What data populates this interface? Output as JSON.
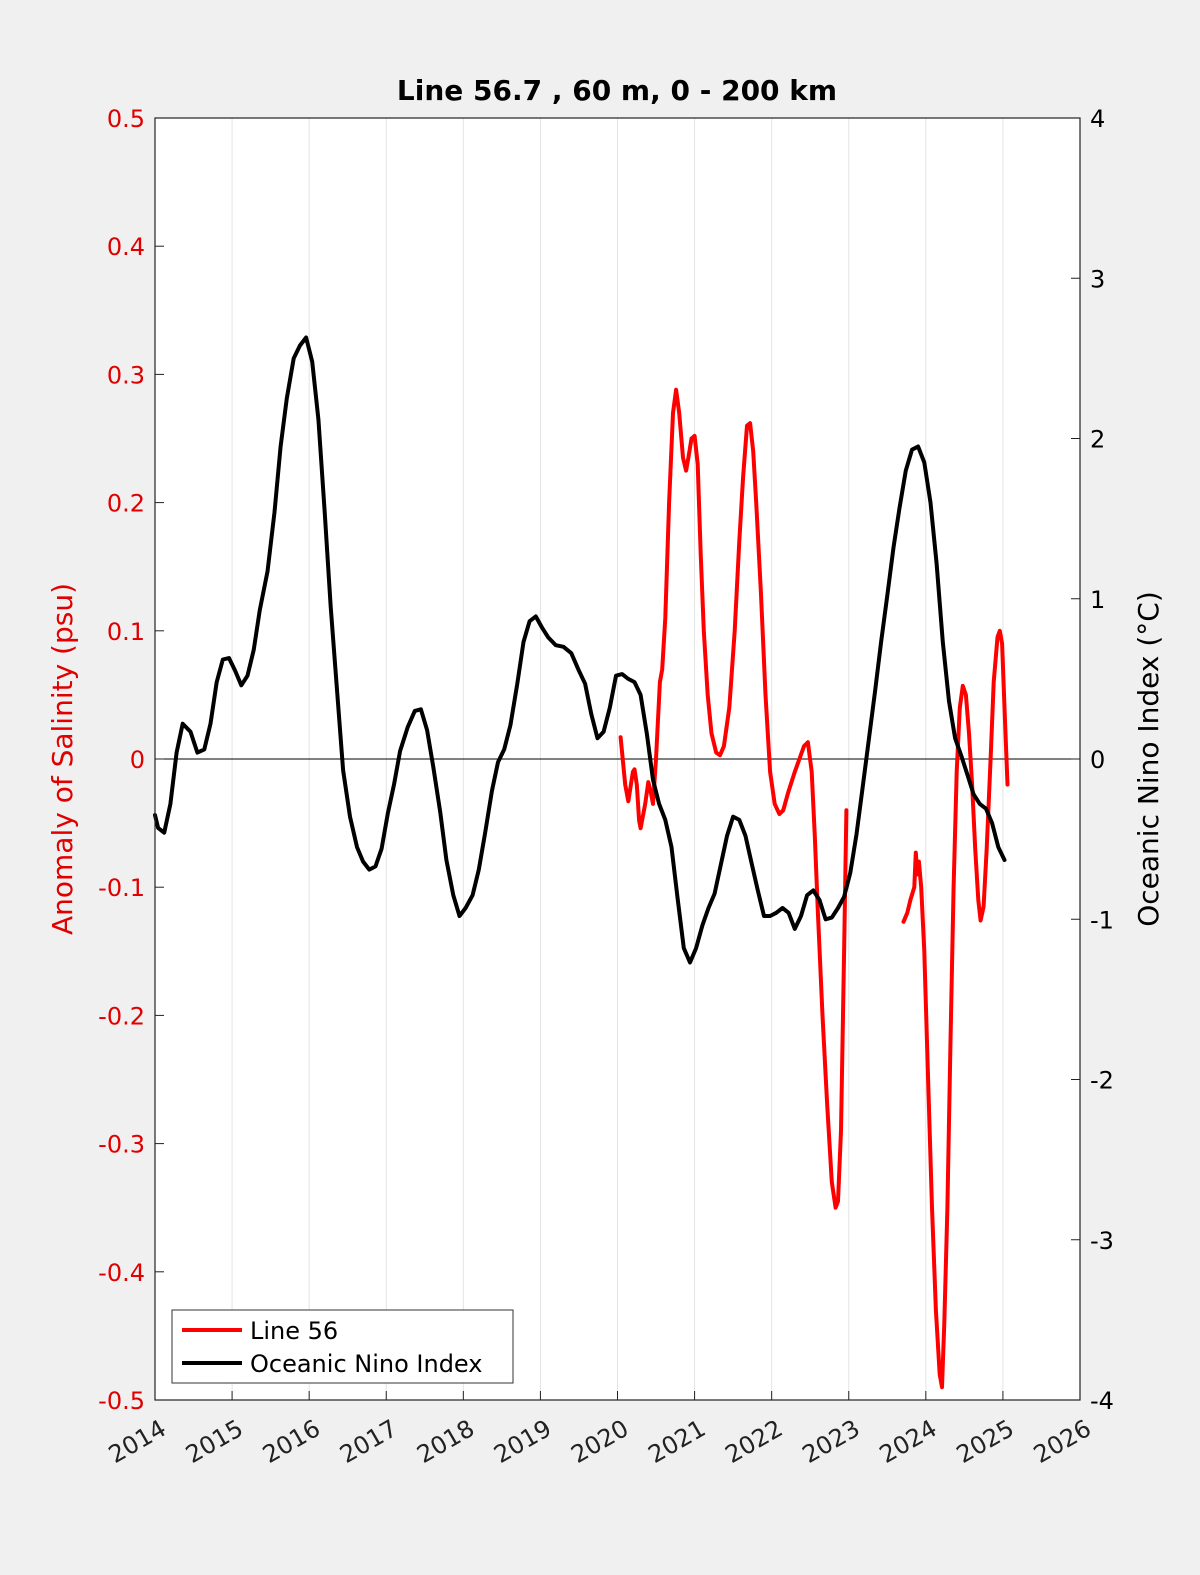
{
  "chart_data": {
    "type": "line",
    "title": "Line 56.7 , 60 m, 0 - 200 km",
    "ylabel_left": "Anomaly of Salinity (psu)",
    "ylabel_right": "Oceanic Nino Index (°C)",
    "xlim": [
      2014,
      2026
    ],
    "ylim_left": [
      -0.5,
      0.5
    ],
    "ylim_right": [
      -4,
      4
    ],
    "x_ticks": [
      2014,
      2015,
      2016,
      2017,
      2018,
      2019,
      2020,
      2021,
      2022,
      2023,
      2024,
      2025,
      2026
    ],
    "x_tick_labels": [
      "2014",
      "2015",
      "2016",
      "2017",
      "2018",
      "2019",
      "2020",
      "2021",
      "2022",
      "2023",
      "2024",
      "2025",
      "2026"
    ],
    "y_left_ticks": [
      0.5,
      0.4,
      0.3,
      0.2,
      0.1,
      0,
      -0.1,
      -0.2,
      -0.3,
      -0.4,
      -0.5
    ],
    "y_left_tick_labels": [
      "0.5",
      "0.4",
      "0.3",
      "0.2",
      "0.1",
      "0",
      "-0.1",
      "-0.2",
      "-0.3",
      "-0.4",
      "-0.5"
    ],
    "y_right_ticks": [
      4,
      3,
      2,
      1,
      0,
      -1,
      -2,
      -3,
      -4
    ],
    "y_right_tick_labels": [
      "4",
      "3",
      "2",
      "1",
      "0",
      "-1",
      "-2",
      "-3",
      "-4"
    ],
    "grid": "vertical",
    "zero_line": true,
    "legend_position": "bottom-left",
    "colors": {
      "line56": "#ff0000",
      "oni": "#000000",
      "left_axis": "#e00000",
      "right_axis": "#000000"
    },
    "series": [
      {
        "name": "Line 56",
        "axis": "left",
        "segments": [
          [
            [
              2020.04,
              0.017
            ],
            [
              2020.1,
              -0.02
            ],
            [
              2020.14,
              -0.033
            ],
            [
              2020.2,
              -0.01
            ],
            [
              2020.22,
              -0.008
            ],
            [
              2020.25,
              -0.02
            ],
            [
              2020.28,
              -0.048
            ],
            [
              2020.3,
              -0.054
            ],
            [
              2020.36,
              -0.035
            ],
            [
              2020.4,
              -0.018
            ],
            [
              2020.43,
              -0.025
            ],
            [
              2020.46,
              -0.035
            ],
            [
              2020.5,
              0.0
            ],
            [
              2020.55,
              0.06
            ],
            [
              2020.58,
              0.07
            ],
            [
              2020.62,
              0.11
            ],
            [
              2020.67,
              0.2
            ],
            [
              2020.72,
              0.27
            ],
            [
              2020.76,
              0.288
            ],
            [
              2020.8,
              0.27
            ],
            [
              2020.85,
              0.235
            ],
            [
              2020.89,
              0.225
            ],
            [
              2020.92,
              0.235
            ],
            [
              2020.96,
              0.25
            ],
            [
              2021.0,
              0.252
            ],
            [
              2021.04,
              0.23
            ],
            [
              2021.08,
              0.16
            ],
            [
              2021.12,
              0.1
            ],
            [
              2021.17,
              0.05
            ],
            [
              2021.22,
              0.02
            ],
            [
              2021.28,
              0.005
            ],
            [
              2021.33,
              0.003
            ],
            [
              2021.38,
              0.01
            ],
            [
              2021.45,
              0.04
            ],
            [
              2021.52,
              0.1
            ],
            [
              2021.58,
              0.17
            ],
            [
              2021.63,
              0.22
            ],
            [
              2021.68,
              0.26
            ],
            [
              2021.72,
              0.262
            ],
            [
              2021.76,
              0.24
            ],
            [
              2021.8,
              0.2
            ],
            [
              2021.86,
              0.13
            ],
            [
              2021.92,
              0.05
            ],
            [
              2021.98,
              -0.01
            ],
            [
              2022.04,
              -0.035
            ],
            [
              2022.1,
              -0.043
            ],
            [
              2022.15,
              -0.04
            ],
            [
              2022.22,
              -0.025
            ],
            [
              2022.3,
              -0.01
            ],
            [
              2022.36,
              0.0
            ],
            [
              2022.42,
              0.01
            ],
            [
              2022.47,
              0.013
            ],
            [
              2022.52,
              -0.01
            ],
            [
              2022.56,
              -0.06
            ],
            [
              2022.6,
              -0.12
            ],
            [
              2022.66,
              -0.2
            ],
            [
              2022.72,
              -0.27
            ],
            [
              2022.78,
              -0.33
            ],
            [
              2022.83,
              -0.35
            ],
            [
              2022.86,
              -0.345
            ],
            [
              2022.9,
              -0.29
            ],
            [
              2022.94,
              -0.15
            ],
            [
              2022.97,
              -0.04
            ]
          ],
          [
            [
              2023.71,
              -0.127
            ],
            [
              2023.76,
              -0.12
            ],
            [
              2023.8,
              -0.11
            ],
            [
              2023.85,
              -0.1
            ],
            [
              2023.87,
              -0.073
            ],
            [
              2023.89,
              -0.09
            ],
            [
              2023.91,
              -0.08
            ],
            [
              2023.94,
              -0.1
            ],
            [
              2023.98,
              -0.15
            ],
            [
              2024.03,
              -0.25
            ],
            [
              2024.08,
              -0.35
            ],
            [
              2024.13,
              -0.43
            ],
            [
              2024.18,
              -0.48
            ],
            [
              2024.21,
              -0.49
            ],
            [
              2024.24,
              -0.44
            ],
            [
              2024.28,
              -0.35
            ],
            [
              2024.32,
              -0.22
            ],
            [
              2024.36,
              -0.1
            ],
            [
              2024.4,
              -0.01
            ],
            [
              2024.44,
              0.04
            ],
            [
              2024.48,
              0.057
            ],
            [
              2024.52,
              0.05
            ],
            [
              2024.56,
              0.02
            ],
            [
              2024.6,
              -0.02
            ],
            [
              2024.64,
              -0.07
            ],
            [
              2024.68,
              -0.11
            ],
            [
              2024.71,
              -0.126
            ],
            [
              2024.75,
              -0.115
            ],
            [
              2024.79,
              -0.07
            ],
            [
              2024.84,
              0.0
            ],
            [
              2024.88,
              0.06
            ],
            [
              2024.93,
              0.095
            ],
            [
              2024.96,
              0.1
            ],
            [
              2024.99,
              0.09
            ],
            [
              2025.02,
              0.04
            ],
            [
              2025.06,
              -0.02
            ]
          ]
        ]
      },
      {
        "name": "Oceanic Nino Index",
        "axis": "right",
        "segments": [
          [
            [
              2014.0,
              -0.35
            ],
            [
              2014.04,
              -0.43
            ],
            [
              2014.12,
              -0.46
            ],
            [
              2014.2,
              -0.28
            ],
            [
              2014.28,
              0.04
            ],
            [
              2014.36,
              0.22
            ],
            [
              2014.46,
              0.17
            ],
            [
              2014.55,
              0.04
            ],
            [
              2014.64,
              0.06
            ],
            [
              2014.72,
              0.22
            ],
            [
              2014.8,
              0.48
            ],
            [
              2014.88,
              0.62
            ],
            [
              2014.96,
              0.63
            ],
            [
              2015.04,
              0.55
            ],
            [
              2015.12,
              0.46
            ],
            [
              2015.2,
              0.52
            ],
            [
              2015.28,
              0.68
            ],
            [
              2015.36,
              0.93
            ],
            [
              2015.46,
              1.17
            ],
            [
              2015.55,
              1.54
            ],
            [
              2015.63,
              1.95
            ],
            [
              2015.71,
              2.25
            ],
            [
              2015.8,
              2.5
            ],
            [
              2015.88,
              2.58
            ],
            [
              2015.96,
              2.63
            ],
            [
              2016.04,
              2.48
            ],
            [
              2016.12,
              2.12
            ],
            [
              2016.2,
              1.55
            ],
            [
              2016.28,
              0.95
            ],
            [
              2016.36,
              0.44
            ],
            [
              2016.44,
              -0.07
            ],
            [
              2016.53,
              -0.36
            ],
            [
              2016.62,
              -0.55
            ],
            [
              2016.7,
              -0.64
            ],
            [
              2016.78,
              -0.69
            ],
            [
              2016.86,
              -0.67
            ],
            [
              2016.94,
              -0.56
            ],
            [
              2017.02,
              -0.34
            ],
            [
              2017.1,
              -0.16
            ],
            [
              2017.18,
              0.05
            ],
            [
              2017.28,
              0.2
            ],
            [
              2017.37,
              0.3
            ],
            [
              2017.45,
              0.31
            ],
            [
              2017.53,
              0.18
            ],
            [
              2017.61,
              -0.05
            ],
            [
              2017.7,
              -0.33
            ],
            [
              2017.78,
              -0.63
            ],
            [
              2017.87,
              -0.85
            ],
            [
              2017.95,
              -0.98
            ],
            [
              2018.03,
              -0.93
            ],
            [
              2018.12,
              -0.85
            ],
            [
              2018.2,
              -0.69
            ],
            [
              2018.28,
              -0.47
            ],
            [
              2018.37,
              -0.2
            ],
            [
              2018.45,
              -0.02
            ],
            [
              2018.53,
              0.06
            ],
            [
              2018.61,
              0.21
            ],
            [
              2018.7,
              0.47
            ],
            [
              2018.78,
              0.73
            ],
            [
              2018.86,
              0.86
            ],
            [
              2018.94,
              0.89
            ],
            [
              2019.02,
              0.82
            ],
            [
              2019.1,
              0.76
            ],
            [
              2019.2,
              0.71
            ],
            [
              2019.3,
              0.7
            ],
            [
              2019.4,
              0.66
            ],
            [
              2019.5,
              0.55
            ],
            [
              2019.58,
              0.47
            ],
            [
              2019.66,
              0.28
            ],
            [
              2019.74,
              0.13
            ],
            [
              2019.82,
              0.17
            ],
            [
              2019.9,
              0.32
            ],
            [
              2019.98,
              0.52
            ],
            [
              2020.06,
              0.53
            ],
            [
              2020.14,
              0.5
            ],
            [
              2020.22,
              0.48
            ],
            [
              2020.3,
              0.4
            ],
            [
              2020.38,
              0.16
            ],
            [
              2020.46,
              -0.13
            ],
            [
              2020.54,
              -0.28
            ],
            [
              2020.62,
              -0.38
            ],
            [
              2020.7,
              -0.55
            ],
            [
              2020.78,
              -0.87
            ],
            [
              2020.86,
              -1.18
            ],
            [
              2020.94,
              -1.27
            ],
            [
              2021.02,
              -1.18
            ],
            [
              2021.1,
              -1.04
            ],
            [
              2021.18,
              -0.93
            ],
            [
              2021.26,
              -0.84
            ],
            [
              2021.34,
              -0.66
            ],
            [
              2021.42,
              -0.48
            ],
            [
              2021.5,
              -0.36
            ],
            [
              2021.58,
              -0.38
            ],
            [
              2021.66,
              -0.48
            ],
            [
              2021.74,
              -0.65
            ],
            [
              2021.82,
              -0.82
            ],
            [
              2021.9,
              -0.98
            ],
            [
              2021.98,
              -0.98
            ],
            [
              2022.06,
              -0.96
            ],
            [
              2022.14,
              -0.93
            ],
            [
              2022.22,
              -0.96
            ],
            [
              2022.3,
              -1.06
            ],
            [
              2022.38,
              -0.98
            ],
            [
              2022.46,
              -0.85
            ],
            [
              2022.54,
              -0.82
            ],
            [
              2022.62,
              -0.88
            ],
            [
              2022.7,
              -1.0
            ],
            [
              2022.78,
              -0.99
            ],
            [
              2022.86,
              -0.93
            ],
            [
              2022.94,
              -0.86
            ],
            [
              2023.02,
              -0.71
            ],
            [
              2023.1,
              -0.47
            ],
            [
              2023.18,
              -0.18
            ],
            [
              2023.26,
              0.12
            ],
            [
              2023.34,
              0.42
            ],
            [
              2023.42,
              0.73
            ],
            [
              2023.5,
              1.02
            ],
            [
              2023.58,
              1.32
            ],
            [
              2023.66,
              1.57
            ],
            [
              2023.74,
              1.8
            ],
            [
              2023.82,
              1.93
            ],
            [
              2023.9,
              1.95
            ],
            [
              2023.98,
              1.85
            ],
            [
              2024.06,
              1.6
            ],
            [
              2024.14,
              1.22
            ],
            [
              2024.22,
              0.73
            ],
            [
              2024.3,
              0.36
            ],
            [
              2024.38,
              0.13
            ],
            [
              2024.46,
              0.02
            ],
            [
              2024.54,
              -0.1
            ],
            [
              2024.62,
              -0.22
            ],
            [
              2024.7,
              -0.28
            ],
            [
              2024.78,
              -0.31
            ],
            [
              2024.86,
              -0.4
            ],
            [
              2024.94,
              -0.55
            ],
            [
              2025.02,
              -0.63
            ]
          ]
        ]
      }
    ]
  }
}
